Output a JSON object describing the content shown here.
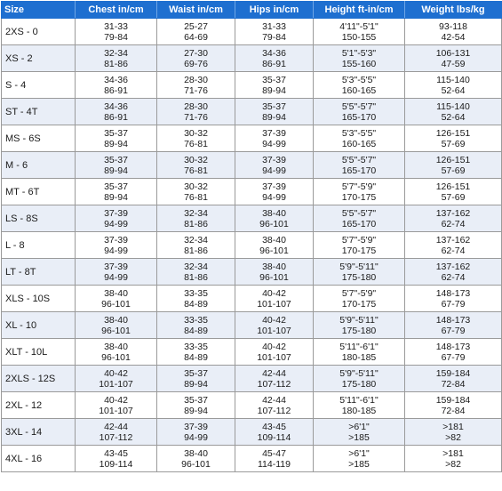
{
  "table": {
    "headers": [
      "Size",
      "Chest in/cm",
      "Waist in/cm",
      "Hips in/cm",
      "Height ft-in/cm",
      "Weight lbs/kg"
    ],
    "rows": [
      {
        "size": "2XS - 0",
        "chest": [
          "31-33",
          "79-84"
        ],
        "waist": [
          "25-27",
          "64-69"
        ],
        "hips": [
          "31-33",
          "79-84"
        ],
        "height": [
          "4'11\"-5'1\"",
          "150-155"
        ],
        "weight": [
          "93-118",
          "42-54"
        ]
      },
      {
        "size": "XS - 2",
        "chest": [
          "32-34",
          "81-86"
        ],
        "waist": [
          "27-30",
          "69-76"
        ],
        "hips": [
          "34-36",
          "86-91"
        ],
        "height": [
          "5'1\"-5'3\"",
          "155-160"
        ],
        "weight": [
          "106-131",
          "47-59"
        ]
      },
      {
        "size": "S - 4",
        "chest": [
          "34-36",
          "86-91"
        ],
        "waist": [
          "28-30",
          "71-76"
        ],
        "hips": [
          "35-37",
          "89-94"
        ],
        "height": [
          "5'3\"-5'5\"",
          "160-165"
        ],
        "weight": [
          "115-140",
          "52-64"
        ]
      },
      {
        "size": "ST - 4T",
        "chest": [
          "34-36",
          "86-91"
        ],
        "waist": [
          "28-30",
          "71-76"
        ],
        "hips": [
          "35-37",
          "89-94"
        ],
        "height": [
          "5'5\"-5'7\"",
          "165-170"
        ],
        "weight": [
          "115-140",
          "52-64"
        ]
      },
      {
        "size": "MS - 6S",
        "chest": [
          "35-37",
          "89-94"
        ],
        "waist": [
          "30-32",
          "76-81"
        ],
        "hips": [
          "37-39",
          "94-99"
        ],
        "height": [
          "5'3\"-5'5\"",
          "160-165"
        ],
        "weight": [
          "126-151",
          "57-69"
        ]
      },
      {
        "size": "M - 6",
        "chest": [
          "35-37",
          "89-94"
        ],
        "waist": [
          "30-32",
          "76-81"
        ],
        "hips": [
          "37-39",
          "94-99"
        ],
        "height": [
          "5'5\"-5'7\"",
          "165-170"
        ],
        "weight": [
          "126-151",
          "57-69"
        ]
      },
      {
        "size": "MT - 6T",
        "chest": [
          "35-37",
          "89-94"
        ],
        "waist": [
          "30-32",
          "76-81"
        ],
        "hips": [
          "37-39",
          "94-99"
        ],
        "height": [
          "5'7\"-5'9\"",
          "170-175"
        ],
        "weight": [
          "126-151",
          "57-69"
        ]
      },
      {
        "size": "LS - 8S",
        "chest": [
          "37-39",
          "94-99"
        ],
        "waist": [
          "32-34",
          "81-86"
        ],
        "hips": [
          "38-40",
          "96-101"
        ],
        "height": [
          "5'5\"-5'7\"",
          "165-170"
        ],
        "weight": [
          "137-162",
          "62-74"
        ]
      },
      {
        "size": "L - 8",
        "chest": [
          "37-39",
          "94-99"
        ],
        "waist": [
          "32-34",
          "81-86"
        ],
        "hips": [
          "38-40",
          "96-101"
        ],
        "height": [
          "5'7\"-5'9\"",
          "170-175"
        ],
        "weight": [
          "137-162",
          "62-74"
        ]
      },
      {
        "size": "LT - 8T",
        "chest": [
          "37-39",
          "94-99"
        ],
        "waist": [
          "32-34",
          "81-86"
        ],
        "hips": [
          "38-40",
          "96-101"
        ],
        "height": [
          "5'9\"-5'11\"",
          "175-180"
        ],
        "weight": [
          "137-162",
          "62-74"
        ]
      },
      {
        "size": "XLS - 10S",
        "chest": [
          "38-40",
          "96-101"
        ],
        "waist": [
          "33-35",
          "84-89"
        ],
        "hips": [
          "40-42",
          "101-107"
        ],
        "height": [
          "5'7\"-5'9\"",
          "170-175"
        ],
        "weight": [
          "148-173",
          "67-79"
        ]
      },
      {
        "size": "XL - 10",
        "chest": [
          "38-40",
          "96-101"
        ],
        "waist": [
          "33-35",
          "84-89"
        ],
        "hips": [
          "40-42",
          "101-107"
        ],
        "height": [
          "5'9\"-5'11\"",
          "175-180"
        ],
        "weight": [
          "148-173",
          "67-79"
        ]
      },
      {
        "size": "XLT - 10L",
        "chest": [
          "38-40",
          "96-101"
        ],
        "waist": [
          "33-35",
          "84-89"
        ],
        "hips": [
          "40-42",
          "101-107"
        ],
        "height": [
          "5'11\"-6'1\"",
          "180-185"
        ],
        "weight": [
          "148-173",
          "67-79"
        ]
      },
      {
        "size": "2XLS - 12S",
        "chest": [
          "40-42",
          "101-107"
        ],
        "waist": [
          "35-37",
          "89-94"
        ],
        "hips": [
          "42-44",
          "107-112"
        ],
        "height": [
          "5'9\"-5'11\"",
          "175-180"
        ],
        "weight": [
          "159-184",
          "72-84"
        ]
      },
      {
        "size": "2XL - 12",
        "chest": [
          "40-42",
          "101-107"
        ],
        "waist": [
          "35-37",
          "89-94"
        ],
        "hips": [
          "42-44",
          "107-112"
        ],
        "height": [
          "5'11\"-6'1\"",
          "180-185"
        ],
        "weight": [
          "159-184",
          "72-84"
        ]
      },
      {
        "size": "3XL - 14",
        "chest": [
          "42-44",
          "107-112"
        ],
        "waist": [
          "37-39",
          "94-99"
        ],
        "hips": [
          "43-45",
          "109-114"
        ],
        "height": [
          ">6'1\"",
          ">185"
        ],
        "weight": [
          ">181",
          ">82"
        ]
      },
      {
        "size": "4XL - 16",
        "chest": [
          "43-45",
          "109-114"
        ],
        "waist": [
          "38-40",
          "96-101"
        ],
        "hips": [
          "45-47",
          "114-119"
        ],
        "height": [
          ">6'1\"",
          ">185"
        ],
        "weight": [
          ">181",
          ">82"
        ]
      }
    ]
  },
  "colors": {
    "header_bg": "#1e6fd0",
    "header_text": "#ffffff",
    "alt_row_bg": "#e9eef7",
    "grid": "#9a9a9a"
  }
}
